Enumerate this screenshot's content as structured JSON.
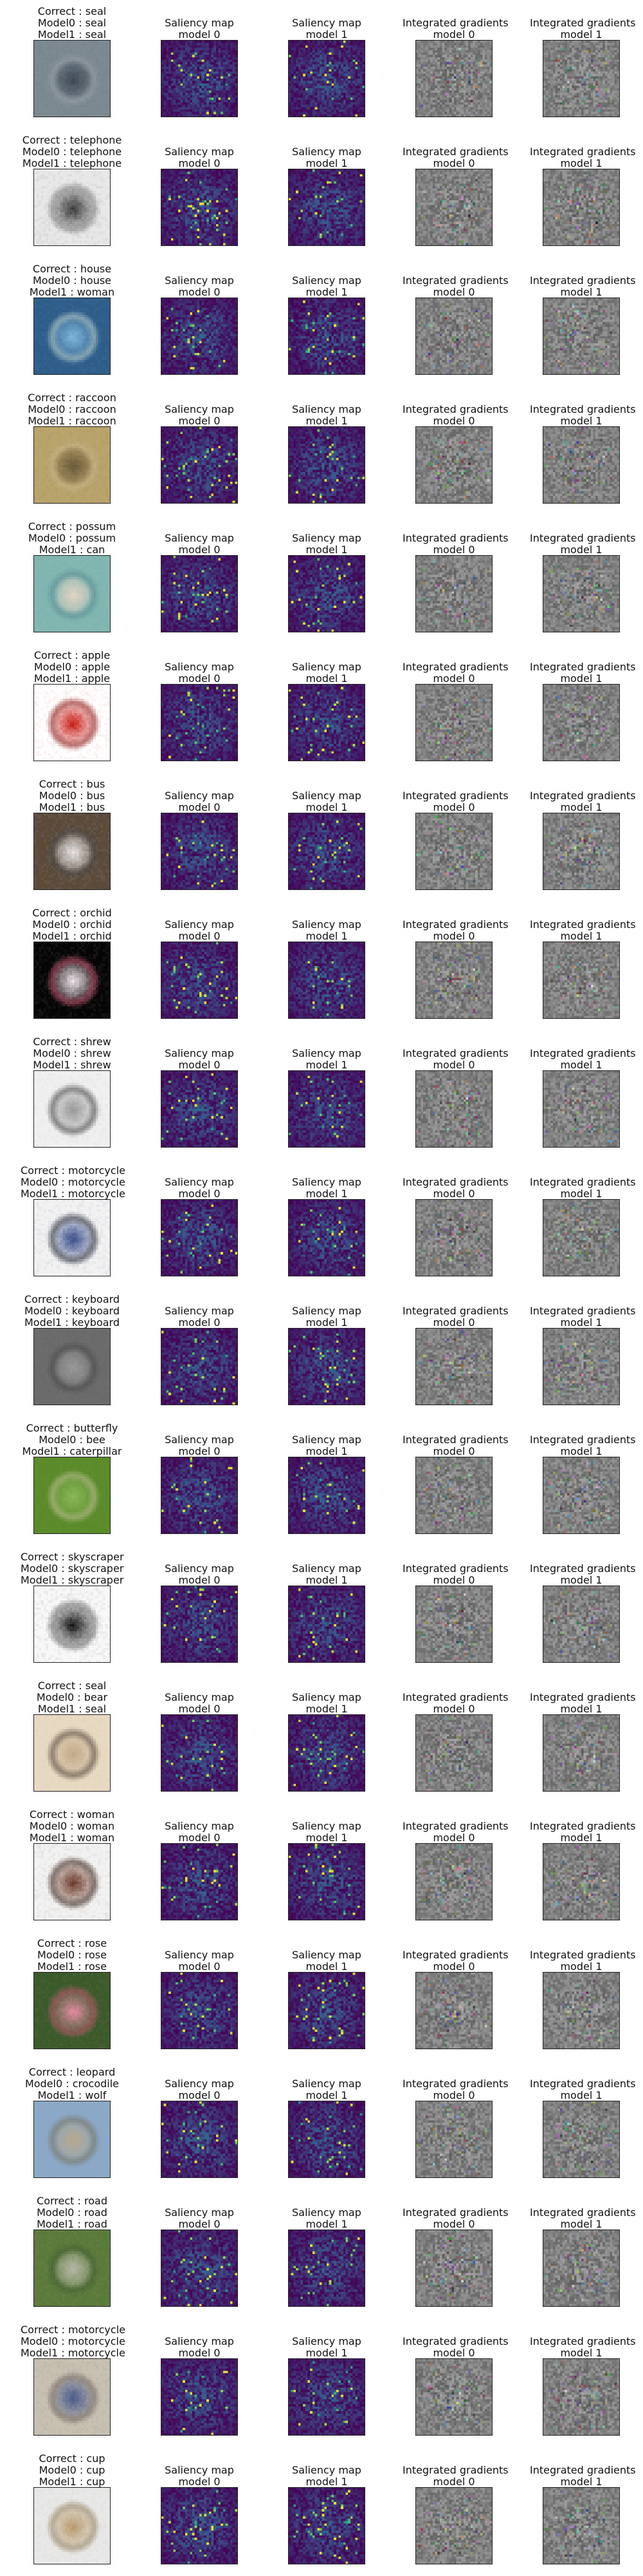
{
  "column_headers": {
    "saliency_0": [
      "Saliency map",
      "model 0"
    ],
    "saliency_1": [
      "Saliency map",
      "model 1"
    ],
    "ig_0": [
      "Integrated gradients",
      "model 0"
    ],
    "ig_1": [
      "Integrated gradients",
      "model 1"
    ]
  },
  "colors": {
    "saliency_low": "#3b0f60",
    "saliency_mid": "#2a788e",
    "saliency_high": "#fde725",
    "ig_base": "#808080"
  },
  "rows": [
    {
      "correct": "Correct : seal",
      "model0": "Model0 : seal",
      "model1": "Model1 : seal",
      "thumb": [
        "#7d8a92",
        "#3f4a55",
        "#a8b2b8"
      ]
    },
    {
      "correct": "Correct : telephone",
      "model0": "Model0 : telephone",
      "model1": "Model1 : telephone",
      "thumb": [
        "#e8e8e8",
        "#3a3a3a",
        "#8a8a8a"
      ]
    },
    {
      "correct": "Correct : house",
      "model0": "Model0 : house",
      "model1": "Model1 : woman",
      "thumb": [
        "#2f5d8a",
        "#7fb7d9",
        "#c9d8c8"
      ]
    },
    {
      "correct": "Correct : raccoon",
      "model0": "Model0 : raccoon",
      "model1": "Model1 : raccoon",
      "thumb": [
        "#b9a46c",
        "#6b5a3a",
        "#d9c89a"
      ]
    },
    {
      "correct": "Correct : possum",
      "model0": "Model0 : possum",
      "model1": "Model1 : can",
      "thumb": [
        "#7fb5b0",
        "#e3d3c3",
        "#3d7f8a"
      ]
    },
    {
      "correct": "Correct : apple",
      "model0": "Model0 : apple",
      "model1": "Model1 : apple",
      "thumb": [
        "#ffffff",
        "#c8201a",
        "#7a0e0a"
      ]
    },
    {
      "correct": "Correct : bus",
      "model0": "Model0 : bus",
      "model1": "Model1 : bus",
      "thumb": [
        "#5b4a3a",
        "#e8e8e8",
        "#2a2a2a"
      ]
    },
    {
      "correct": "Correct : orchid",
      "model0": "Model0 : orchid",
      "model1": "Model1 : orchid",
      "thumb": [
        "#050505",
        "#f4e8ee",
        "#c03a5a"
      ]
    },
    {
      "correct": "Correct : shrew",
      "model0": "Model0 : shrew",
      "model1": "Model1 : shrew",
      "thumb": [
        "#f0f0f0",
        "#9a9a9a",
        "#2e2e2e"
      ]
    },
    {
      "correct": "Correct : motorcycle",
      "model0": "Model0 : motorcycle",
      "model1": "Model1 : motorcycle",
      "thumb": [
        "#f2f2f2",
        "#3b4f8a",
        "#1a1a1a"
      ]
    },
    {
      "correct": "Correct : keyboard",
      "model0": "Model0 : keyboard",
      "model1": "Model1 : keyboard",
      "thumb": [
        "#6a6a6a",
        "#9a9a9a",
        "#3a3a3a"
      ]
    },
    {
      "correct": "Correct : butterfly",
      "model0": "Model0 : bee",
      "model1": "Model1 : caterpillar",
      "thumb": [
        "#5a8a2a",
        "#8ab85a",
        "#c9c0a0"
      ]
    },
    {
      "correct": "Correct : skyscraper",
      "model0": "Model0 : skyscraper",
      "model1": "Model1 : skyscraper",
      "thumb": [
        "#f8f8f8",
        "#151515",
        "#7a7a7a"
      ]
    },
    {
      "correct": "Correct : seal",
      "model0": "Model0 : bear",
      "model1": "Model1 : seal",
      "thumb": [
        "#e8d9c3",
        "#c2a888",
        "#3a2e26"
      ]
    },
    {
      "correct": "Correct : woman",
      "model0": "Model0 : woman",
      "model1": "Model1 : woman",
      "thumb": [
        "#f2f2f2",
        "#6b3a28",
        "#2a1a14"
      ]
    },
    {
      "correct": "Correct : rose",
      "model0": "Model0 : rose",
      "model1": "Model1 : rose",
      "thumb": [
        "#3a5a2a",
        "#e08aa0",
        "#b04a60"
      ]
    },
    {
      "correct": "Correct : leopard",
      "model0": "Model0 : crocodile",
      "model1": "Model1 : wolf",
      "thumb": [
        "#8aa8c8",
        "#b8a888",
        "#6a6a5a"
      ]
    },
    {
      "correct": "Correct : road",
      "model0": "Model0 : road",
      "model1": "Model1 : road",
      "thumb": [
        "#5a7a3a",
        "#b8b8a8",
        "#2a4a1a"
      ]
    },
    {
      "correct": "Correct : motorcycle",
      "model0": "Model0 : motorcycle",
      "model1": "Model1 : motorcycle",
      "thumb": [
        "#c8c0b0",
        "#4a5a8a",
        "#7a6a5a"
      ]
    },
    {
      "correct": "Correct : cup",
      "model0": "Model0 : cup",
      "model1": "Model1 : cup",
      "thumb": [
        "#e8e8e8",
        "#b89a6a",
        "#8a7a5a"
      ]
    }
  ]
}
